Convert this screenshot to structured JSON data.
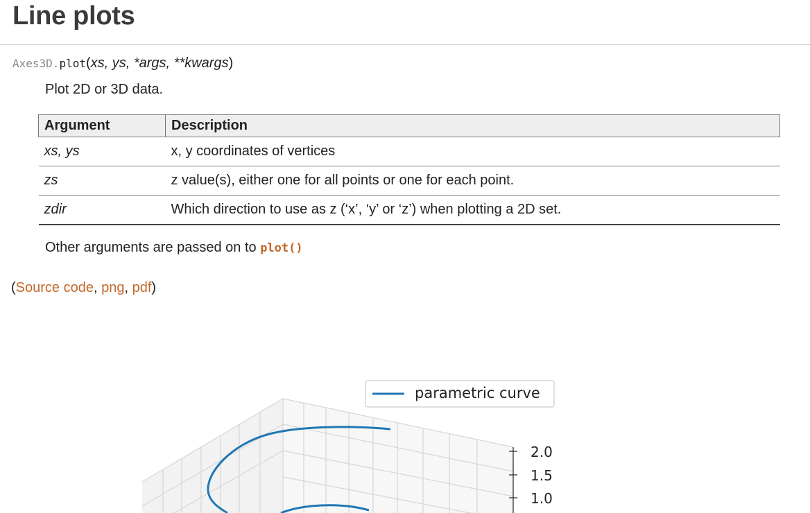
{
  "page": {
    "title": "Line plots"
  },
  "signature": {
    "class_prefix": "Axes3D.",
    "method": "plot",
    "open_paren": "(",
    "params": "xs, ys, *args, **kwargs",
    "close_paren": ")"
  },
  "summary": "Plot 2D or 3D data.",
  "args_table": {
    "headers": [
      "Argument",
      "Description"
    ],
    "rows": [
      {
        "argument": "xs, ys",
        "description": "x, y coordinates of vertices"
      },
      {
        "argument": "zs",
        "description": "z value(s), either one for all points or one for each point."
      },
      {
        "argument": "zdir",
        "description": "Which direction to use as z (‘x’, ‘y’ or ‘z’) when plotting a 2D set."
      }
    ]
  },
  "other_args": {
    "text": "Other arguments are passed on to ",
    "link": "plot()"
  },
  "source_links": {
    "open": "(",
    "source_code": "Source code",
    "sep1": ", ",
    "png": "png",
    "sep2": ", ",
    "pdf": "pdf",
    "close": ")"
  },
  "colors": {
    "link": "#c26828",
    "series": "#1f77b4",
    "pane": "#f2f2f2",
    "grid": "#d9d9d9"
  },
  "chart_data": {
    "type": "line",
    "legend": [
      "parametric curve"
    ],
    "legend_position": "top-right",
    "zticks": [
      "2.0",
      "1.5",
      "1.0"
    ],
    "grid": true
  }
}
